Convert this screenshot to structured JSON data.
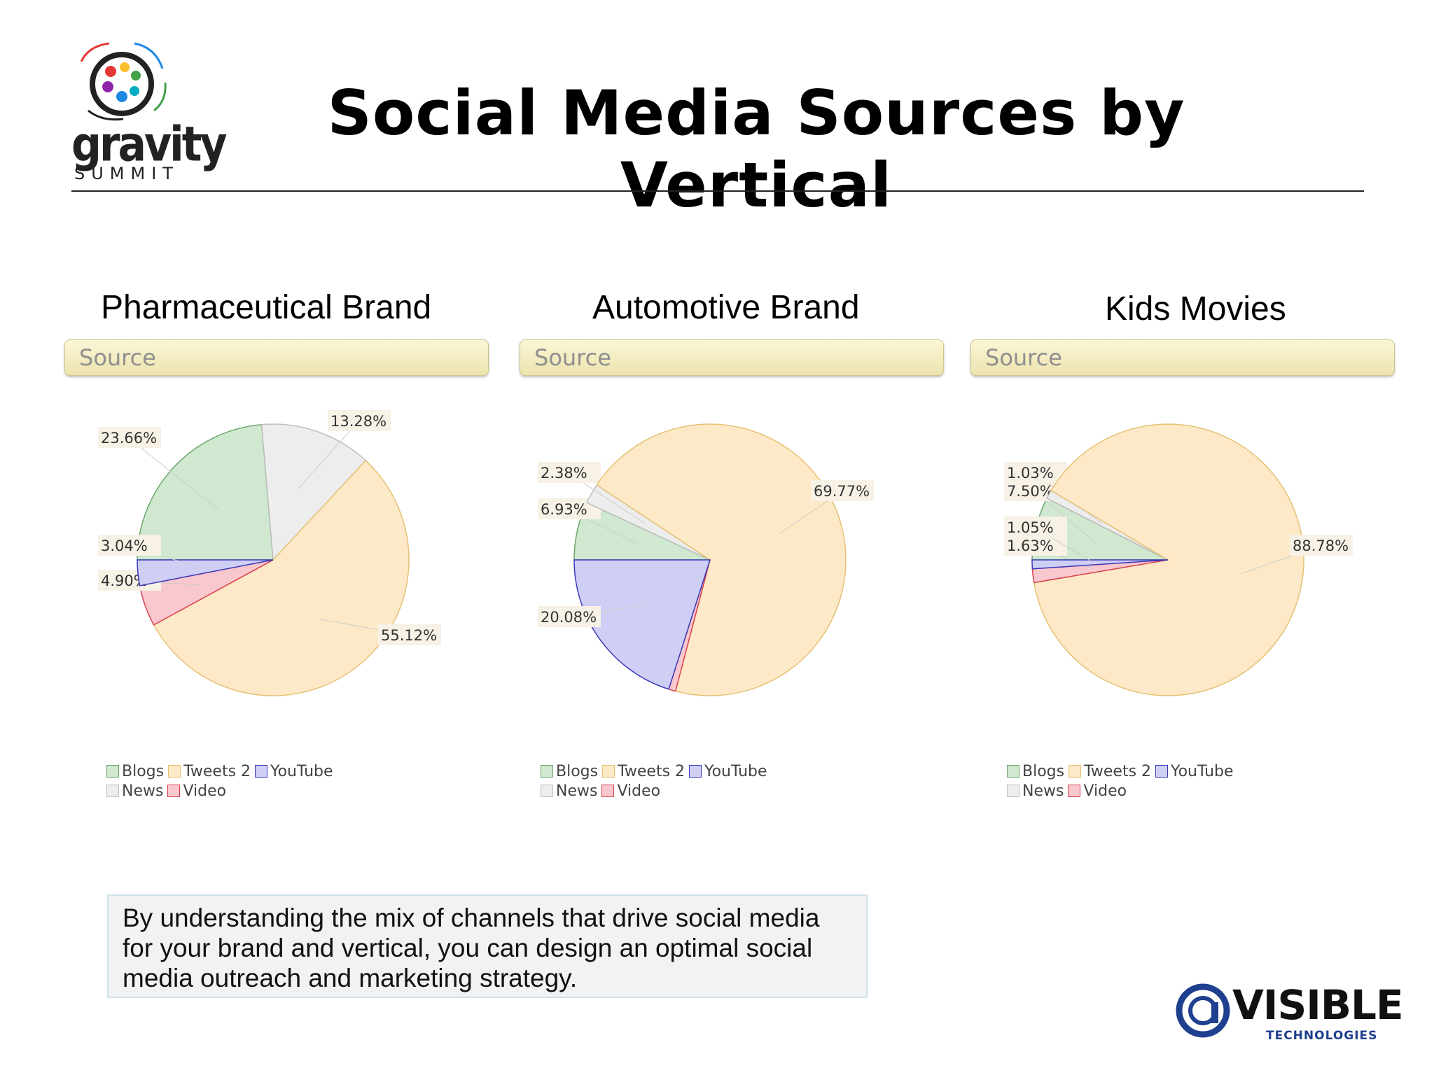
{
  "header": {
    "title": "Social Media Sources by Vertical",
    "logo_word": "gravity",
    "logo_sub": "SUMMIT"
  },
  "colors": {
    "blogs": "#cfe8cf",
    "tweets": "#fde9c7",
    "youtube": "#cfcff6",
    "news": "#ededed",
    "video": "#f9c8cf"
  },
  "chart_data": [
    {
      "type": "pie",
      "title": "Pharmaceutical Brand",
      "panel_label": "Source",
      "legend": [
        "Blogs",
        "Tweets 2",
        "YouTube",
        "News",
        "Video"
      ],
      "slices": [
        {
          "name": "Blogs",
          "value": 23.66,
          "label": "23.66%"
        },
        {
          "name": "News",
          "value": 13.28,
          "label": "13.28%"
        },
        {
          "name": "Tweets 2",
          "value": 55.12,
          "label": "55.12%"
        },
        {
          "name": "Video",
          "value": 4.9,
          "label": "4.90%"
        },
        {
          "name": "YouTube",
          "value": 3.04,
          "label": "3.04%"
        }
      ]
    },
    {
      "type": "pie",
      "title": "Automotive Brand",
      "panel_label": "Source",
      "legend": [
        "Blogs",
        "Tweets 2",
        "YouTube",
        "News",
        "Video"
      ],
      "slices": [
        {
          "name": "Blogs",
          "value": 6.93,
          "label": "6.93%"
        },
        {
          "name": "News",
          "value": 2.38,
          "label": "2.38%"
        },
        {
          "name": "Tweets 2",
          "value": 69.77,
          "label": "69.77%"
        },
        {
          "name": "Video",
          "value": 0.83,
          "label": "0.83%"
        },
        {
          "name": "YouTube",
          "value": 20.08,
          "label": "20.08%"
        }
      ]
    },
    {
      "type": "pie",
      "title": "Kids Movies",
      "panel_label": "Source",
      "legend": [
        "Blogs",
        "Tweets 2",
        "YouTube",
        "News",
        "Video"
      ],
      "slices": [
        {
          "name": "Blogs",
          "value": 7.5,
          "label": "7.50%"
        },
        {
          "name": "News",
          "value": 1.03,
          "label": "1.03%"
        },
        {
          "name": "Tweets 2",
          "value": 88.78,
          "label": "88.78%"
        },
        {
          "name": "Video",
          "value": 1.63,
          "label": "1.63%"
        },
        {
          "name": "YouTube",
          "value": 1.05,
          "label": "1.05%"
        }
      ]
    }
  ],
  "note": "By understanding the mix of channels that drive social media for your brand and vertical, you can design an optimal social media outreach and marketing strategy.",
  "footer_logo": {
    "word": "VISIBLE",
    "sub": "TECHNOLOGIES"
  }
}
